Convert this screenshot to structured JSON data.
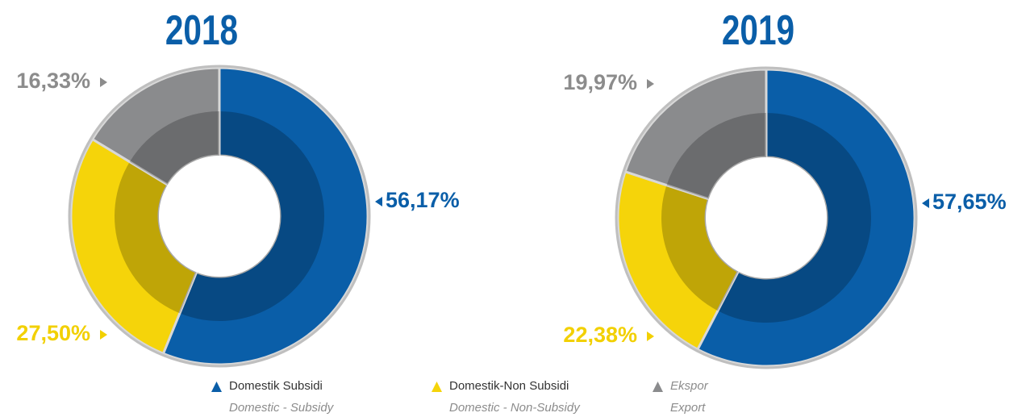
{
  "chart_data": [
    {
      "type": "pie",
      "title": "2018",
      "categories": [
        "Domestik Subsidi",
        "Domestik-Non Subsidi",
        "Ekspor"
      ],
      "values": [
        56.17,
        27.5,
        16.33
      ],
      "value_labels": [
        "56,17%",
        "27,50%",
        "16,33%"
      ],
      "colors": [
        "#0a5ea8",
        "#f5d40a",
        "#8a8b8d"
      ],
      "label_colors": [
        "#0a5ea8",
        "#f2d000",
        "#8c8c8c"
      ]
    },
    {
      "type": "pie",
      "title": "2019",
      "categories": [
        "Domestik Subsidi",
        "Domestik-Non Subsidi",
        "Ekspor"
      ],
      "values": [
        57.65,
        22.38,
        19.97
      ],
      "value_labels": [
        "57,65%",
        "22,38%",
        "19,97%"
      ],
      "colors": [
        "#0a5ea8",
        "#f5d40a",
        "#8a8b8d"
      ],
      "label_colors": [
        "#0a5ea8",
        "#f2d000",
        "#8c8c8c"
      ]
    }
  ],
  "legend": [
    {
      "name": "Domestik Subsidi",
      "subtitle": "Domestic - Subsidy"
    },
    {
      "name": "Domestik-Non Subsidi",
      "subtitle": "Domestic - Non-Subsidy"
    },
    {
      "name": "Ekspor",
      "subtitle": "Export"
    }
  ]
}
